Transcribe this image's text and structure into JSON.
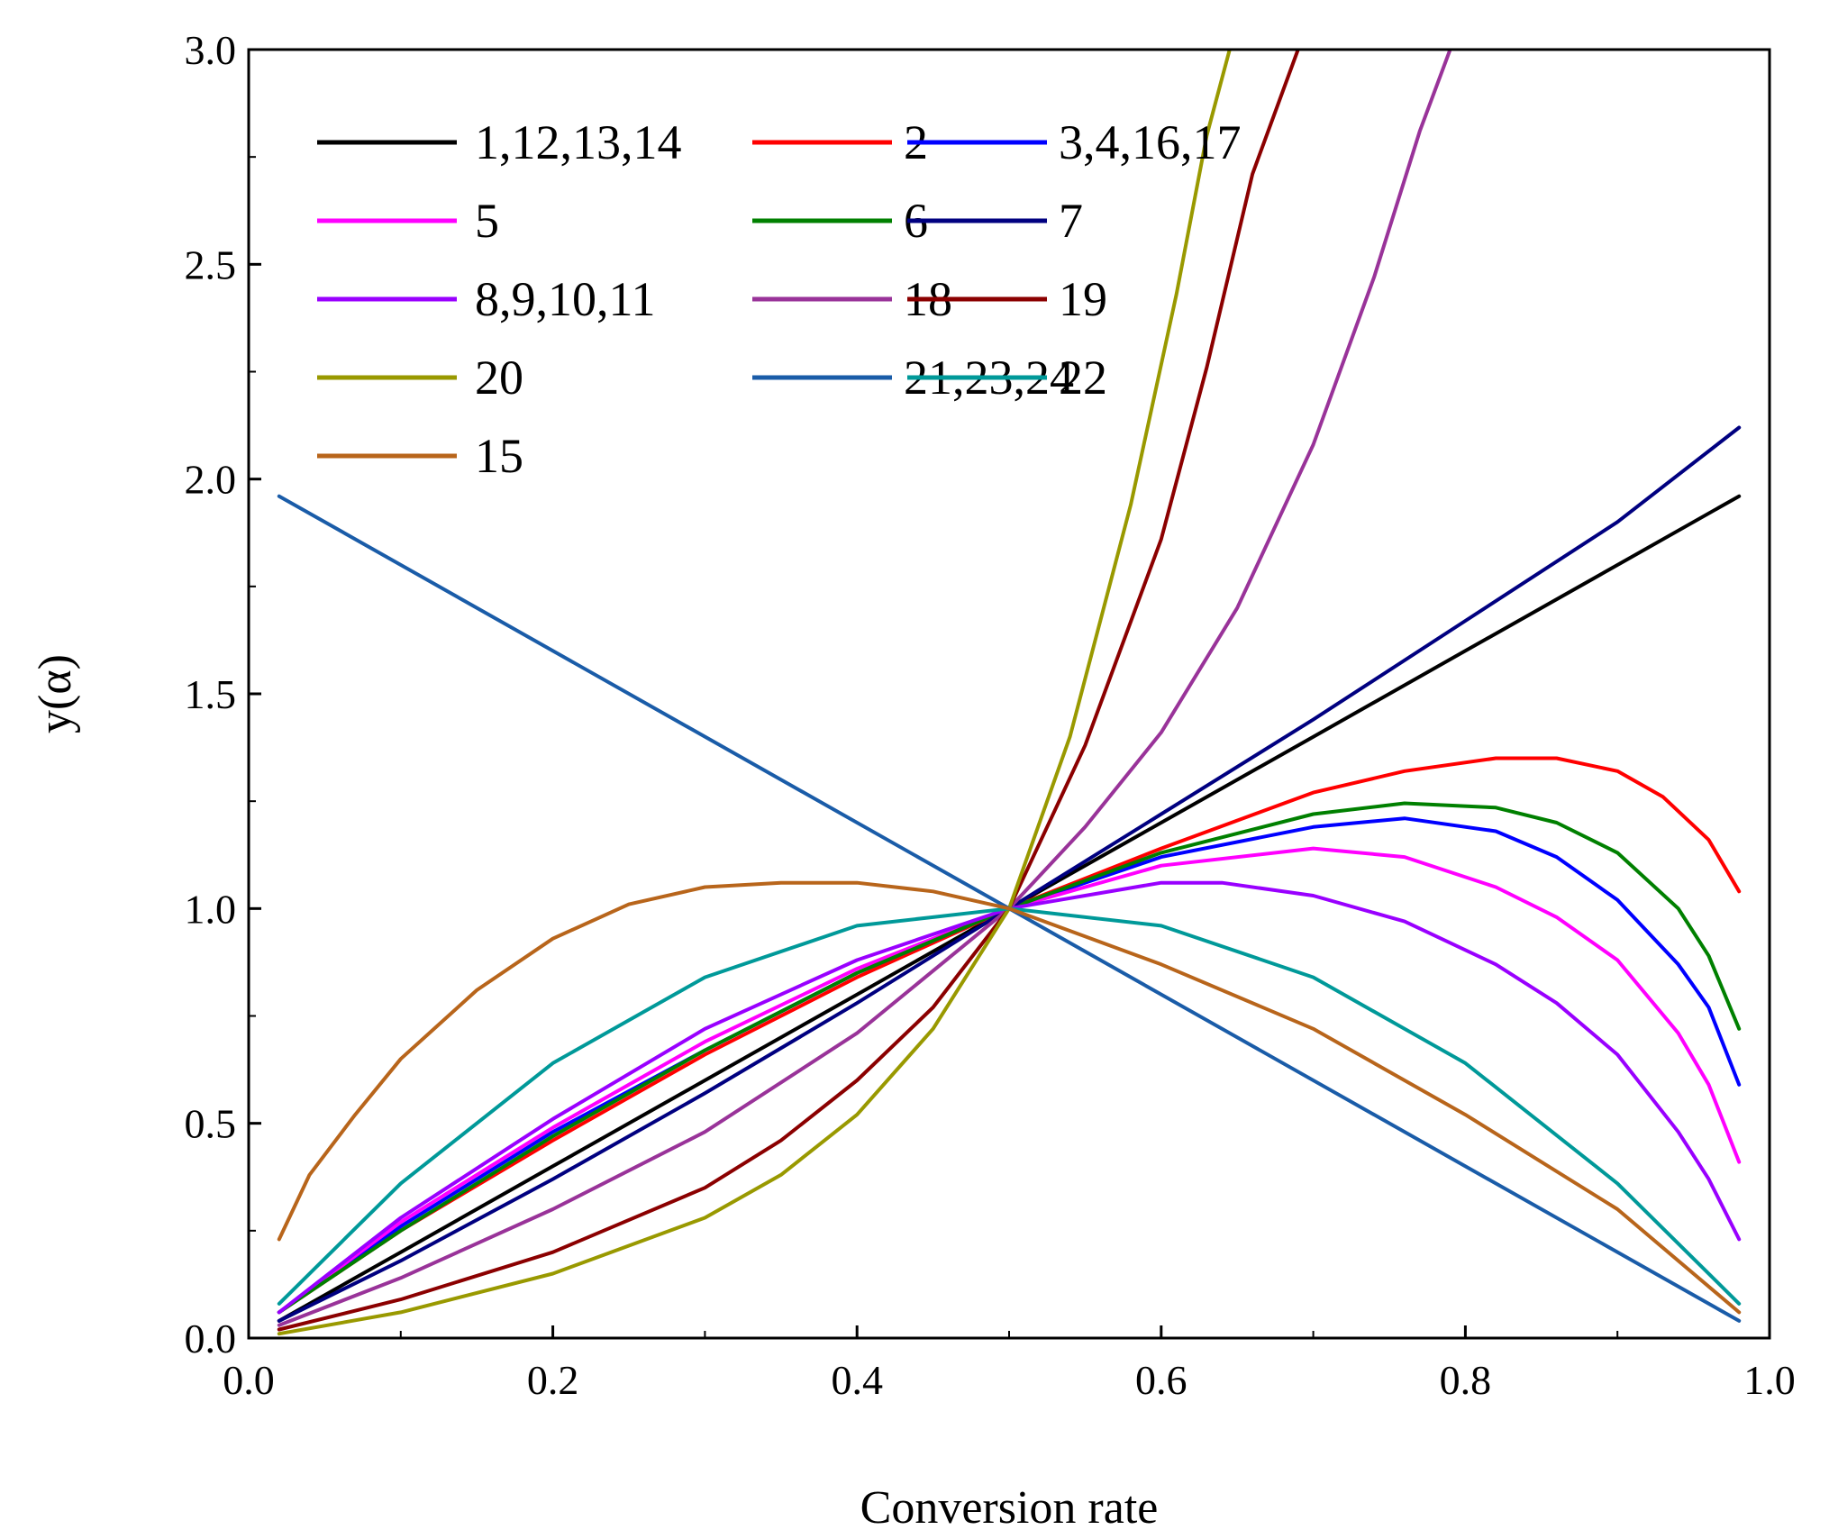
{
  "chart_data": {
    "type": "line",
    "title": "",
    "xlabel": "Conversion rate",
    "ylabel": "y(α)",
    "xlim": [
      0.0,
      1.0
    ],
    "ylim": [
      0.0,
      3.0
    ],
    "xticks": [
      "0.0",
      "0.2",
      "0.4",
      "0.6",
      "0.8",
      "1.0"
    ],
    "yticks": [
      "0.0",
      "0.5",
      "1.0",
      "1.5",
      "2.0",
      "2.5",
      "3.0"
    ],
    "grid": false,
    "legend_position": "top-left",
    "series": [
      {
        "name": "1,12,13,14",
        "color": "#000000",
        "x": [
          0.02,
          0.1,
          0.2,
          0.3,
          0.4,
          0.5,
          0.6,
          0.7,
          0.8,
          0.9,
          0.98
        ],
        "y": [
          0.04,
          0.2,
          0.4,
          0.6,
          0.8,
          1.0,
          1.2,
          1.4,
          1.6,
          1.8,
          1.96
        ]
      },
      {
        "name": "2",
        "color": "#ff0000",
        "x": [
          0.02,
          0.1,
          0.2,
          0.3,
          0.4,
          0.5,
          0.6,
          0.7,
          0.76,
          0.82,
          0.86,
          0.9,
          0.93,
          0.96,
          0.98
        ],
        "y": [
          0.06,
          0.25,
          0.46,
          0.66,
          0.84,
          1.0,
          1.14,
          1.27,
          1.32,
          1.35,
          1.35,
          1.32,
          1.26,
          1.16,
          1.04
        ]
      },
      {
        "name": "3,4,16,17",
        "color": "#0000ff",
        "x": [
          0.02,
          0.1,
          0.2,
          0.3,
          0.4,
          0.5,
          0.6,
          0.7,
          0.76,
          0.82,
          0.86,
          0.9,
          0.94,
          0.96,
          0.98
        ],
        "y": [
          0.06,
          0.26,
          0.48,
          0.67,
          0.85,
          1.0,
          1.12,
          1.19,
          1.21,
          1.18,
          1.12,
          1.02,
          0.87,
          0.77,
          0.59
        ]
      },
      {
        "name": "5",
        "color": "#ff00ff",
        "x": [
          0.02,
          0.1,
          0.2,
          0.3,
          0.4,
          0.5,
          0.6,
          0.7,
          0.76,
          0.82,
          0.86,
          0.9,
          0.94,
          0.96,
          0.98
        ],
        "y": [
          0.06,
          0.27,
          0.49,
          0.69,
          0.86,
          1.0,
          1.1,
          1.14,
          1.12,
          1.05,
          0.98,
          0.88,
          0.71,
          0.59,
          0.41
        ]
      },
      {
        "name": "6",
        "color": "#008000",
        "x": [
          0.02,
          0.1,
          0.2,
          0.3,
          0.4,
          0.5,
          0.6,
          0.7,
          0.76,
          0.82,
          0.86,
          0.9,
          0.94,
          0.96,
          0.98
        ],
        "y": [
          0.06,
          0.25,
          0.47,
          0.67,
          0.85,
          1.0,
          1.13,
          1.22,
          1.245,
          1.235,
          1.2,
          1.13,
          1.0,
          0.89,
          0.72
        ]
      },
      {
        "name": "7",
        "color": "#000080",
        "x": [
          0.02,
          0.1,
          0.2,
          0.3,
          0.4,
          0.5,
          0.6,
          0.7,
          0.8,
          0.9,
          0.98
        ],
        "y": [
          0.04,
          0.18,
          0.37,
          0.57,
          0.78,
          1.0,
          1.22,
          1.44,
          1.67,
          1.9,
          2.12
        ]
      },
      {
        "name": "8,9,10,11",
        "color": "#9900ff",
        "x": [
          0.02,
          0.1,
          0.2,
          0.3,
          0.4,
          0.5,
          0.6,
          0.64,
          0.7,
          0.76,
          0.82,
          0.86,
          0.9,
          0.94,
          0.96,
          0.98
        ],
        "y": [
          0.06,
          0.28,
          0.51,
          0.72,
          0.88,
          1.0,
          1.06,
          1.06,
          1.03,
          0.97,
          0.87,
          0.78,
          0.66,
          0.48,
          0.37,
          0.23
        ]
      },
      {
        "name": "18",
        "color": "#993399",
        "x": [
          0.02,
          0.1,
          0.2,
          0.3,
          0.4,
          0.5,
          0.55,
          0.6,
          0.65,
          0.7,
          0.74,
          0.77,
          0.79
        ],
        "y": [
          0.03,
          0.14,
          0.3,
          0.48,
          0.71,
          1.0,
          1.19,
          1.41,
          1.7,
          2.08,
          2.47,
          2.81,
          3.0
        ]
      },
      {
        "name": "19",
        "color": "#8b0000",
        "x": [
          0.02,
          0.1,
          0.2,
          0.3,
          0.35,
          0.4,
          0.45,
          0.5,
          0.55,
          0.6,
          0.63,
          0.66,
          0.69
        ],
        "y": [
          0.02,
          0.09,
          0.2,
          0.35,
          0.46,
          0.6,
          0.77,
          1.0,
          1.38,
          1.86,
          2.26,
          2.71,
          3.0
        ]
      },
      {
        "name": "20",
        "color": "#999900",
        "x": [
          0.02,
          0.1,
          0.2,
          0.3,
          0.35,
          0.4,
          0.45,
          0.5,
          0.54,
          0.58,
          0.61,
          0.63,
          0.645
        ],
        "y": [
          0.01,
          0.06,
          0.15,
          0.28,
          0.38,
          0.52,
          0.72,
          1.0,
          1.4,
          1.94,
          2.43,
          2.8,
          3.0
        ]
      },
      {
        "name": "21,23,24",
        "color": "#1a5ca8",
        "x": [
          0.02,
          0.5,
          0.98
        ],
        "y": [
          1.96,
          1.0,
          0.04
        ]
      },
      {
        "name": "22",
        "color": "#009999",
        "x": [
          0.02,
          0.1,
          0.2,
          0.3,
          0.4,
          0.5,
          0.6,
          0.7,
          0.8,
          0.9,
          0.98
        ],
        "y": [
          0.08,
          0.36,
          0.64,
          0.84,
          0.96,
          1.0,
          0.96,
          0.84,
          0.64,
          0.36,
          0.08
        ]
      },
      {
        "name": "15",
        "color": "#b8651b",
        "x": [
          0.02,
          0.04,
          0.07,
          0.1,
          0.15,
          0.2,
          0.25,
          0.3,
          0.35,
          0.4,
          0.45,
          0.5,
          0.6,
          0.7,
          0.8,
          0.9,
          0.98
        ],
        "y": [
          0.23,
          0.38,
          0.52,
          0.65,
          0.81,
          0.93,
          1.01,
          1.05,
          1.06,
          1.06,
          1.04,
          1.0,
          0.87,
          0.72,
          0.52,
          0.3,
          0.06
        ]
      }
    ]
  }
}
